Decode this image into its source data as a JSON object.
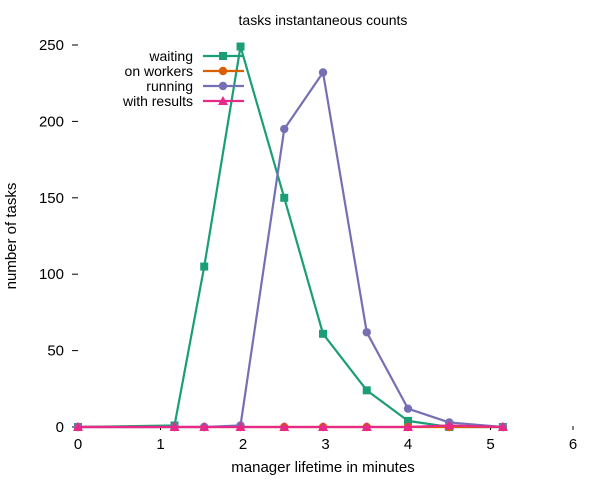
{
  "chart_data": {
    "type": "line",
    "title": "tasks instantaneous counts",
    "xlabel": "manager lifetime in minutes",
    "ylabel": "number of tasks",
    "xlim": [
      0,
      6
    ],
    "ylim": [
      0,
      250
    ],
    "xticks": [
      "0",
      "1",
      "2",
      "3",
      "4",
      "5",
      "6"
    ],
    "yticks": [
      "0",
      "50",
      "100",
      "150",
      "200",
      "250"
    ],
    "grid": false,
    "legend_position": "top-left",
    "series": [
      {
        "name": "waiting",
        "color": "#1b9e77",
        "marker": "square",
        "points": [
          [
            0,
            0
          ],
          [
            1.17,
            1
          ],
          [
            1.53,
            105
          ],
          [
            1.97,
            249
          ],
          [
            2.5,
            150
          ],
          [
            2.97,
            61
          ],
          [
            3.5,
            24
          ],
          [
            4.0,
            4
          ],
          [
            4.5,
            0
          ],
          [
            5.15,
            0
          ]
        ]
      },
      {
        "name": "on workers",
        "color": "#d95f02",
        "marker": "circle",
        "points": [
          [
            0,
            0
          ],
          [
            1.17,
            0
          ],
          [
            1.53,
            0
          ],
          [
            1.97,
            0
          ],
          [
            2.5,
            0
          ],
          [
            2.97,
            0
          ],
          [
            3.5,
            0
          ],
          [
            4.0,
            0
          ],
          [
            4.5,
            0
          ],
          [
            5.15,
            0
          ]
        ]
      },
      {
        "name": "running",
        "color": "#7570b3",
        "marker": "circle",
        "points": [
          [
            0,
            0
          ],
          [
            1.17,
            0
          ],
          [
            1.53,
            0
          ],
          [
            1.97,
            1
          ],
          [
            2.5,
            195
          ],
          [
            2.97,
            232
          ],
          [
            3.5,
            62
          ],
          [
            4.0,
            12
          ],
          [
            4.5,
            3
          ],
          [
            5.15,
            0
          ]
        ]
      },
      {
        "name": "with results",
        "color": "#e7298a",
        "marker": "triangle",
        "points": [
          [
            0,
            0
          ],
          [
            1.17,
            0
          ],
          [
            1.53,
            0
          ],
          [
            1.97,
            0
          ],
          [
            2.5,
            0
          ],
          [
            2.97,
            0
          ],
          [
            3.5,
            0
          ],
          [
            4.0,
            0
          ],
          [
            4.5,
            1
          ],
          [
            5.15,
            0
          ]
        ]
      }
    ]
  }
}
